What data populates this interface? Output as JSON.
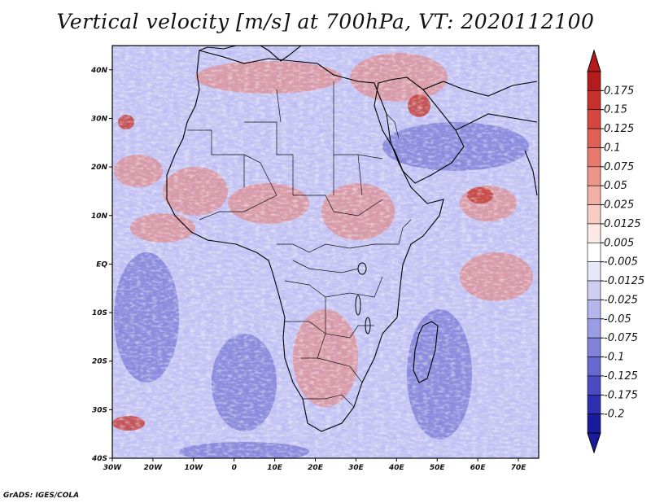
{
  "title": "Vertical velocity [m/s] at 700hPa, VT: 2020112100",
  "credit": "GrADS: IGES/COLA",
  "map": {
    "field": "Vertical velocity",
    "units": "m/s",
    "level": "700hPa",
    "valid_time": "2020112100",
    "lon_range": [
      -30,
      75
    ],
    "lat_range": [
      -40,
      45
    ],
    "lon_ticks": [
      "30W",
      "20W",
      "10W",
      "0",
      "10E",
      "20E",
      "30E",
      "40E",
      "50E",
      "60E",
      "70E"
    ],
    "lat_ticks": [
      "40N",
      "30N",
      "20N",
      "10N",
      "EQ",
      "10S",
      "20S",
      "30S",
      "40S"
    ]
  },
  "colorbar": {
    "labels": [
      "0.175",
      "0.15",
      "0.125",
      "0.1",
      "0.075",
      "0.05",
      "0.025",
      "0.0125",
      "0.005",
      "-0.005",
      "-0.0125",
      "-0.025",
      "-0.05",
      "-0.075",
      "-0.1",
      "-0.125",
      "-0.175",
      "-0.2"
    ],
    "colors": [
      "#b41c1c",
      "#c8302d",
      "#d6483f",
      "#e06154",
      "#e87a6d",
      "#ee9587",
      "#f3b0a4",
      "#f8ccc4",
      "#fce8e4",
      "#ffffff",
      "#e7e7fa",
      "#cfcff4",
      "#b6b6ec",
      "#9c9ce4",
      "#8282db",
      "#6767d0",
      "#4a4ac2",
      "#2e2eb0",
      "#1a1a9c"
    ]
  }
}
